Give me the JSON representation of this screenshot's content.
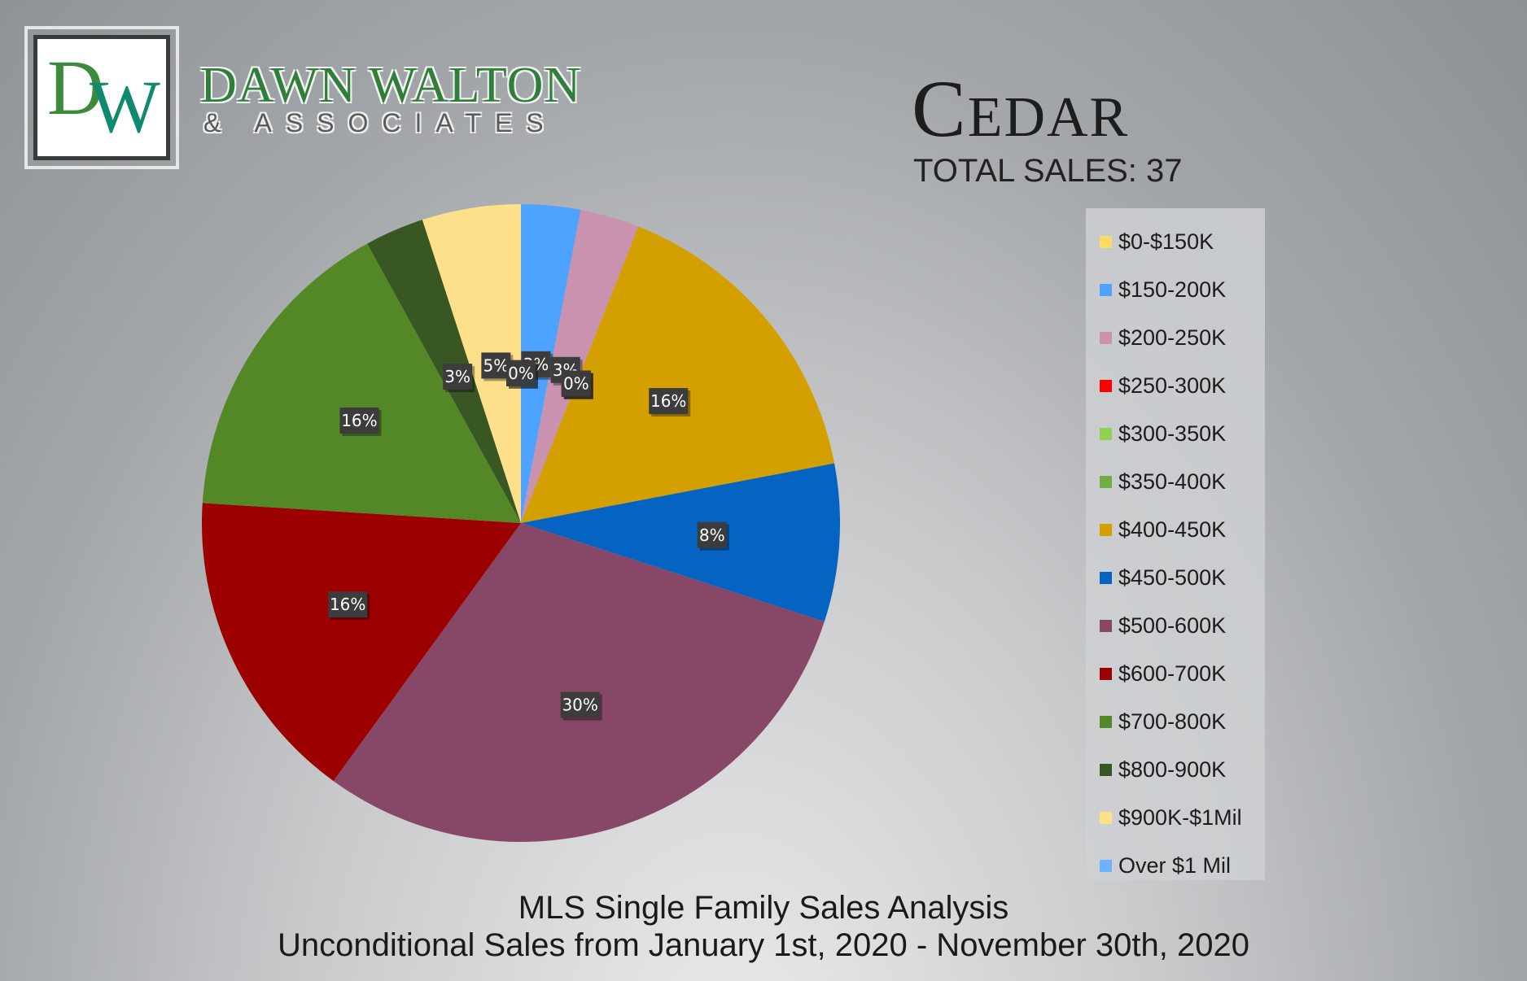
{
  "logo": {
    "monogram_d": "D",
    "monogram_w": "W",
    "name": "DAWN WALTON",
    "sub": "& ASSOCIATES"
  },
  "header": {
    "city": "Cedar",
    "total": "TOTAL SALES: 37"
  },
  "footer": {
    "line1": "MLS Single Family Sales Analysis",
    "line2": "Unconditional Sales from January 1st, 2020 - November 30th, 2020"
  },
  "chart_data": {
    "type": "pie",
    "title": "Cedar",
    "legend_position": "right",
    "slices": [
      {
        "label": "$0-$150K",
        "value": 0,
        "pct_label": "0%",
        "color": "#FFD966"
      },
      {
        "label": "$150-200K",
        "value": 3,
        "pct_label": "3%",
        "color": "#4DA3FF"
      },
      {
        "label": "$200-250K",
        "value": 3,
        "pct_label": "3%",
        "color": "#C993B0"
      },
      {
        "label": "$250-300K",
        "value": 0,
        "pct_label": "0%",
        "color": "#FF0000"
      },
      {
        "label": "$300-350K",
        "value": 0,
        "pct_label": "0%",
        "color": "#92D050"
      },
      {
        "label": "$350-400K",
        "value": 0,
        "pct_label": "0%",
        "color": "#70AD47"
      },
      {
        "label": "$400-450K",
        "value": 16,
        "pct_label": "16%",
        "color": "#D4A000"
      },
      {
        "label": "$450-500K",
        "value": 8,
        "pct_label": "8%",
        "color": "#0563C1"
      },
      {
        "label": "$500-600K",
        "value": 30,
        "pct_label": "30%",
        "color": "#874766"
      },
      {
        "label": "$600-700K",
        "value": 16,
        "pct_label": "16%",
        "color": "#9C0000"
      },
      {
        "label": "$700-800K",
        "value": 16,
        "pct_label": "16%",
        "color": "#548827"
      },
      {
        "label": "$800-900K",
        "value": 3,
        "pct_label": "3%",
        "color": "#385723"
      },
      {
        "label": "$900K-$1Mil",
        "value": 5,
        "pct_label": "5%",
        "color": "#FFE08A"
      },
      {
        "label": "Over $1 Mil",
        "value": 0,
        "pct_label": "0%",
        "color": "#6DB3FF"
      }
    ]
  }
}
